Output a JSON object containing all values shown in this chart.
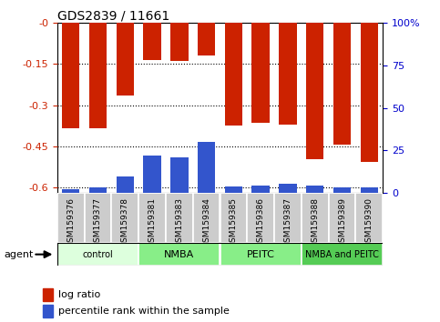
{
  "title": "GDS2839 / 11661",
  "categories": [
    "GSM159376",
    "GSM159377",
    "GSM159378",
    "GSM159381",
    "GSM159383",
    "GSM159384",
    "GSM159385",
    "GSM159386",
    "GSM159387",
    "GSM159388",
    "GSM159389",
    "GSM159390"
  ],
  "log_ratio": [
    -0.385,
    -0.385,
    -0.265,
    -0.135,
    -0.14,
    -0.12,
    -0.375,
    -0.365,
    -0.37,
    -0.495,
    -0.445,
    -0.505
  ],
  "percentile_rank": [
    2.5,
    3.5,
    10.0,
    22.0,
    21.0,
    30.0,
    4.0,
    4.5,
    5.5,
    4.5,
    3.5,
    3.5
  ],
  "groups": [
    {
      "label": "control",
      "indices": [
        0,
        1,
        2
      ],
      "color": "#ccffcc"
    },
    {
      "label": "NMBA",
      "indices": [
        3,
        4,
        5
      ],
      "color": "#88ee88"
    },
    {
      "label": "PEITC",
      "indices": [
        6,
        7,
        8
      ],
      "color": "#88ee88"
    },
    {
      "label": "NMBA and PEITC",
      "indices": [
        9,
        10,
        11
      ],
      "color": "#55cc55"
    }
  ],
  "ylim_left": [
    -0.62,
    0.0
  ],
  "ylim_right": [
    0,
    100
  ],
  "yticks_left": [
    0.0,
    -0.15,
    -0.3,
    -0.45,
    -0.6
  ],
  "ytick_labels_left": [
    "-0",
    "-0.15",
    "-0.3",
    "-0.45",
    "-0.6"
  ],
  "yticks_right": [
    100,
    75,
    50,
    25,
    0
  ],
  "ytick_labels_right": [
    "100%",
    "75",
    "50",
    "25",
    "0"
  ],
  "bar_color_red": "#cc2200",
  "bar_color_blue": "#3355cc",
  "bar_width": 0.65,
  "tick_color_left": "#cc2200",
  "tick_color_right": "#0000cc",
  "agent_label": "agent",
  "legend_red": "log ratio",
  "legend_blue": "percentile rank within the sample",
  "group_colors": [
    "#ddffdd",
    "#88ee88",
    "#88ee88",
    "#55cc55"
  ],
  "sample_box_color": "#cccccc"
}
